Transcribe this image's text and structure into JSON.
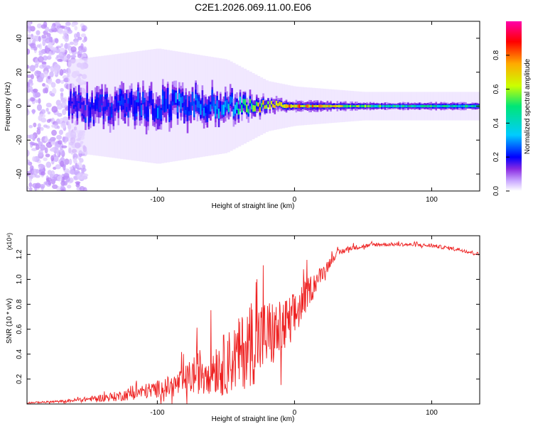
{
  "figure_title": "C2E1.2026.069.11.00.E06",
  "chart_data": [
    {
      "type": "heatmap",
      "title": "C2E1.2026.069.11.00.E06",
      "xlabel": "Height of straight line (km)",
      "ylabel": "Frequency (Hz)",
      "xlim": [
        -195,
        135
      ],
      "ylim": [
        -50,
        50
      ],
      "x_ticks": [
        -100,
        0,
        100
      ],
      "x_tick_labels": [
        "-100",
        "0",
        "100"
      ],
      "y_ticks": [
        -40,
        -20,
        0,
        20,
        40
      ],
      "y_tick_labels": [
        "-40",
        "-20",
        "0",
        "20",
        "40"
      ],
      "colorbar": {
        "label": "Normalized spectral amplitude",
        "range": [
          0,
          1
        ],
        "ticks": [
          0.0,
          0.2,
          0.4,
          0.6,
          0.8
        ],
        "tick_labels": [
          "0.0",
          "0.2",
          "0.4",
          "0.6",
          "0.8"
        ],
        "colors": [
          "#ffffff",
          "#c9a8ff",
          "#8a2be2",
          "#0000ff",
          "#00ccff",
          "#00e676",
          "#ccff00",
          "#ffaa00",
          "#ff0000",
          "#ff00aa"
        ]
      },
      "description_points": {
        "scattered_region_x": [
          -195,
          -160
        ],
        "scattered_freq_range": [
          -50,
          50
        ],
        "band_center_hz": 0,
        "band_halfwidth_at_x": [
          [
            -160,
            8
          ],
          [
            -100,
            10
          ],
          [
            -50,
            8
          ],
          [
            -20,
            4
          ],
          [
            0,
            3
          ],
          [
            50,
            2
          ],
          [
            135,
            2
          ]
        ],
        "band_peak_amplitude_at_x": [
          [
            -160,
            0.3
          ],
          [
            -100,
            0.4
          ],
          [
            -50,
            0.45
          ],
          [
            -20,
            0.8
          ],
          [
            0,
            0.85
          ],
          [
            20,
            0.8
          ],
          [
            60,
            0.6
          ],
          [
            135,
            0.55
          ]
        ]
      }
    },
    {
      "type": "line",
      "title": "",
      "xlabel": "Height of straight line (km)",
      "ylabel": "SNR (10 * v/v)",
      "y_multiplier": "(x10⁴)",
      "xlim": [
        -195,
        135
      ],
      "ylim": [
        0,
        1.35
      ],
      "x_ticks": [
        -100,
        0,
        100
      ],
      "x_tick_labels": [
        "-100",
        "0",
        "100"
      ],
      "y_ticks": [
        0.2,
        0.4,
        0.6,
        0.8,
        1.0,
        1.2
      ],
      "y_tick_labels": [
        "0.2",
        "0.4",
        "0.6",
        "0.8",
        "1.0",
        "1.2"
      ],
      "line_color": "#ee2222",
      "series": [
        {
          "name": "SNR",
          "x": [
            -195,
            -170,
            -150,
            -130,
            -110,
            -100,
            -90,
            -80,
            -70,
            -60,
            -50,
            -40,
            -30,
            -20,
            -10,
            0,
            10,
            20,
            30,
            40,
            60,
            80,
            100,
            120,
            135
          ],
          "values": [
            0.01,
            0.02,
            0.04,
            0.06,
            0.1,
            0.12,
            0.14,
            0.18,
            0.26,
            0.3,
            0.32,
            0.4,
            0.5,
            0.55,
            0.58,
            0.7,
            0.9,
            1.05,
            1.2,
            1.25,
            1.28,
            1.28,
            1.27,
            1.24,
            1.2
          ],
          "noise_amplitude": [
            0.005,
            0.01,
            0.02,
            0.04,
            0.06,
            0.07,
            0.09,
            0.12,
            0.18,
            0.22,
            0.25,
            0.3,
            0.35,
            0.3,
            0.25,
            0.2,
            0.12,
            0.06,
            0.03,
            0.02,
            0.015,
            0.015,
            0.015,
            0.015,
            0.015
          ]
        }
      ]
    }
  ]
}
